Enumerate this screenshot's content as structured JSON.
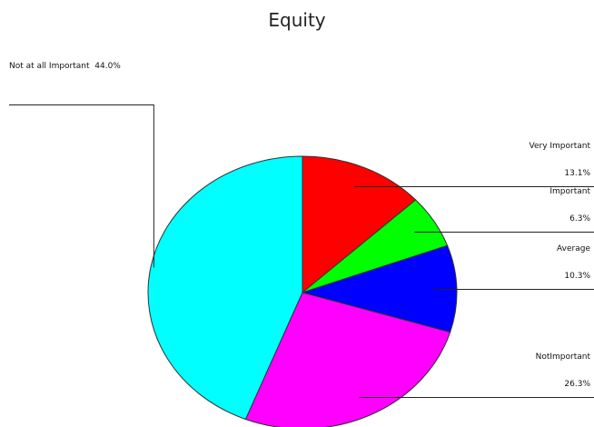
{
  "chart_data": {
    "type": "pie",
    "title": "Equity",
    "categories": [
      "Very Important",
      "Important",
      "Average",
      "NotImportant",
      "Not at all Important"
    ],
    "values": [
      13.1,
      6.3,
      10.3,
      26.3,
      44.0
    ],
    "value_labels": [
      "13.1%",
      "6.3%",
      "10.3%",
      "26.3%",
      "44.0%"
    ],
    "colors": [
      "#ff0000",
      "#00ff00",
      "#0000ff",
      "#ff00ff",
      "#00ffff"
    ]
  }
}
